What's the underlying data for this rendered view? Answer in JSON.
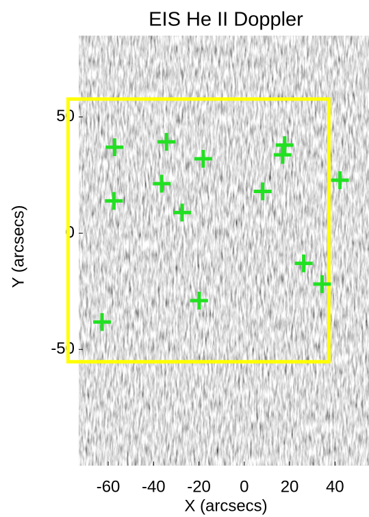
{
  "chart_data": {
    "type": "scatter",
    "title": "EIS He II Doppler",
    "x_label": "X (arcsecs)",
    "y_label": "Y (arcsecs)",
    "xlim": [
      -73,
      55
    ],
    "ylim": [
      -100,
      85
    ],
    "xticks": [
      -60,
      -40,
      -20,
      0,
      20,
      40
    ],
    "yticks": [
      -50,
      0,
      50
    ],
    "series": [
      {
        "color": "#22e022",
        "x": [
          -57.2,
          -34.3,
          -18.1,
          -36.4,
          -57.5,
          -27.4,
          8.1,
          17.8,
          16.9,
          42.2,
          26.2,
          34.3,
          -19.9,
          -62.7
        ],
        "values": [
          37,
          39.3,
          32,
          21.3,
          13.9,
          8.9,
          18,
          37.9,
          33.7,
          22.8,
          -13,
          -21.9,
          -29,
          -38.2
        ]
      }
    ],
    "box": {
      "color": "#ffff00",
      "x": [
        -77.7,
        37.3
      ],
      "y": [
        -55.3,
        57.7
      ]
    }
  }
}
